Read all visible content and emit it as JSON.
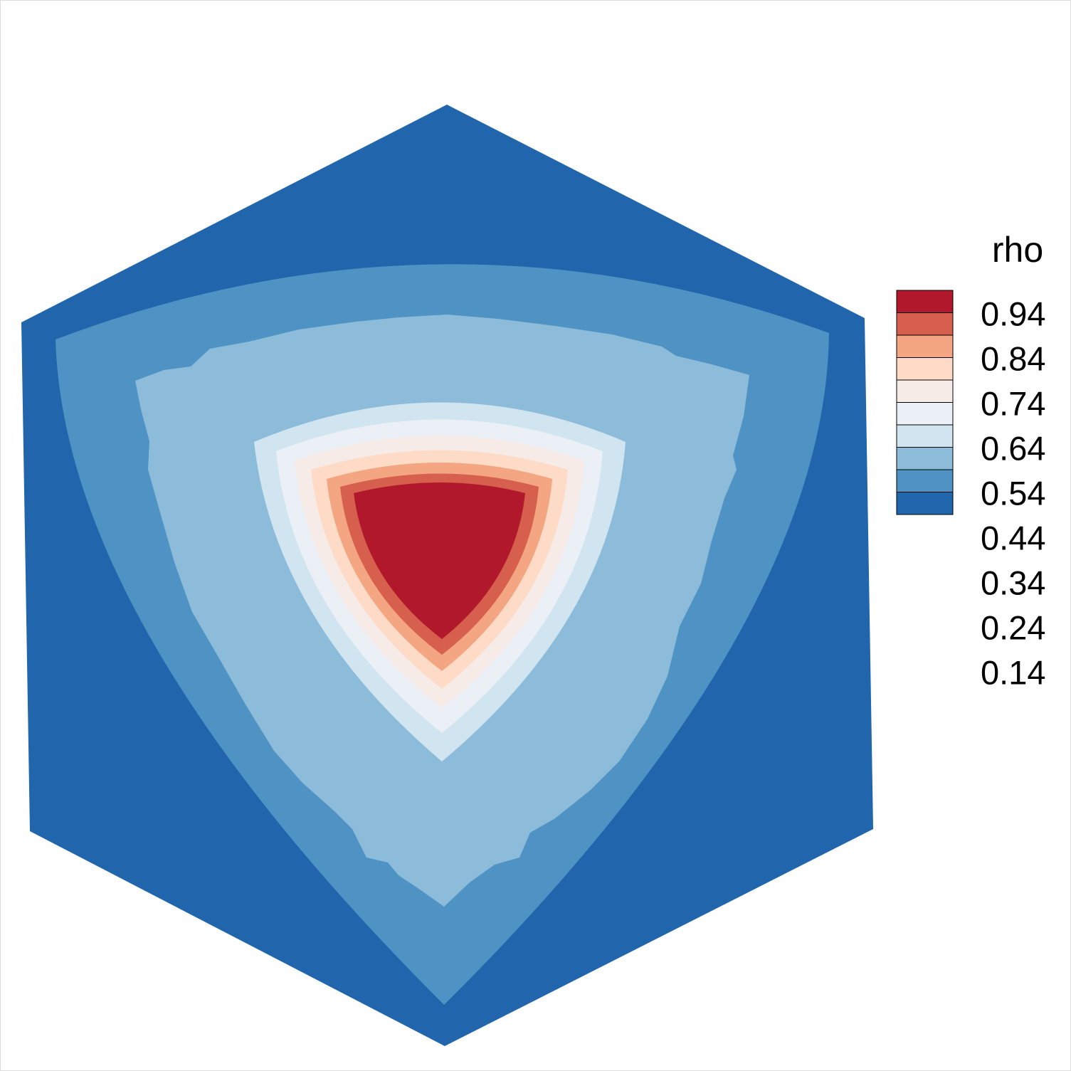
{
  "chart_data": {
    "type": "heatmap",
    "variable": "rho",
    "legend": {
      "title": "rho",
      "ticks": [
        "0.94",
        "0.84",
        "0.74",
        "0.64",
        "0.54",
        "0.44",
        "0.34",
        "0.24",
        "0.14"
      ],
      "level_colors": [
        "#b2182b",
        "#d6604d",
        "#f4a582",
        "#fddbc7",
        "#f7ebe8",
        "#eaf0f5",
        "#d1e5f0",
        "#8dbcdb",
        "#4f92c4",
        "#2166ac"
      ],
      "placement": "right"
    },
    "contour_levels": [
      0.14,
      0.24,
      0.34,
      0.44,
      0.54,
      0.64,
      0.74,
      0.84,
      0.94
    ],
    "domain_shape": "hexagon",
    "peak_region": "upper-center"
  }
}
